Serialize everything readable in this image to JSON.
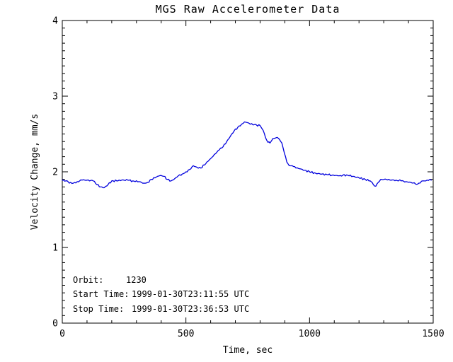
{
  "colors": {
    "background": "#ffffff",
    "axis": "#000000",
    "text": "#000000",
    "line": "#0000dd"
  },
  "chart_data": {
    "type": "line",
    "title": "MGS Raw Accelerometer Data",
    "xlabel": "Time, sec",
    "ylabel": "Velocity Change, mm/s",
    "xlim": [
      0,
      1500
    ],
    "ylim": [
      0,
      4
    ],
    "x_major_ticks": [
      0,
      500,
      1000,
      1500
    ],
    "x_tick_labels": [
      "0",
      "500",
      "1000",
      "1500"
    ],
    "y_major_ticks": [
      0,
      1,
      2,
      3,
      4
    ],
    "y_tick_labels": [
      "0",
      "1",
      "2",
      "3",
      "4"
    ],
    "x_minor_interval": 100,
    "y_minor_interval": 0.1,
    "grid": false,
    "axis_style": "boxed frame, inward ticks on all four sides",
    "legend": "none",
    "annotations": [
      {
        "label": "Orbit:",
        "value": "1230"
      },
      {
        "label": "Start Time:",
        "value": "1999-01-30T23:11:55 UTC"
      },
      {
        "label": "Stop Time:",
        "value": "1999-01-30T23:36:53 UTC"
      }
    ],
    "series": [
      {
        "name": "velocity change",
        "color": "#0000dd",
        "points": [
          [
            0,
            1.89
          ],
          [
            15,
            1.88
          ],
          [
            28,
            1.85
          ],
          [
            45,
            1.85
          ],
          [
            60,
            1.87
          ],
          [
            80,
            1.89
          ],
          [
            100,
            1.89
          ],
          [
            125,
            1.88
          ],
          [
            140,
            1.83
          ],
          [
            155,
            1.8
          ],
          [
            170,
            1.79
          ],
          [
            185,
            1.83
          ],
          [
            200,
            1.88
          ],
          [
            220,
            1.88
          ],
          [
            240,
            1.89
          ],
          [
            265,
            1.89
          ],
          [
            285,
            1.88
          ],
          [
            310,
            1.87
          ],
          [
            330,
            1.85
          ],
          [
            345,
            1.86
          ],
          [
            360,
            1.9
          ],
          [
            380,
            1.93
          ],
          [
            395,
            1.95
          ],
          [
            410,
            1.94
          ],
          [
            425,
            1.9
          ],
          [
            440,
            1.88
          ],
          [
            455,
            1.91
          ],
          [
            470,
            1.95
          ],
          [
            485,
            1.97
          ],
          [
            500,
            2.0
          ],
          [
            515,
            2.03
          ],
          [
            530,
            2.08
          ],
          [
            545,
            2.06
          ],
          [
            560,
            2.05
          ],
          [
            575,
            2.09
          ],
          [
            590,
            2.14
          ],
          [
            605,
            2.19
          ],
          [
            620,
            2.24
          ],
          [
            635,
            2.29
          ],
          [
            650,
            2.33
          ],
          [
            665,
            2.4
          ],
          [
            680,
            2.47
          ],
          [
            695,
            2.54
          ],
          [
            710,
            2.59
          ],
          [
            725,
            2.63
          ],
          [
            737,
            2.66
          ],
          [
            748,
            2.65
          ],
          [
            760,
            2.63
          ],
          [
            772,
            2.62
          ],
          [
            785,
            2.62
          ],
          [
            800,
            2.61
          ],
          [
            812,
            2.55
          ],
          [
            822,
            2.45
          ],
          [
            832,
            2.39
          ],
          [
            840,
            2.38
          ],
          [
            852,
            2.44
          ],
          [
            865,
            2.45
          ],
          [
            878,
            2.43
          ],
          [
            888,
            2.38
          ],
          [
            898,
            2.25
          ],
          [
            908,
            2.13
          ],
          [
            918,
            2.08
          ],
          [
            930,
            2.08
          ],
          [
            945,
            2.05
          ],
          [
            960,
            2.04
          ],
          [
            980,
            2.02
          ],
          [
            1000,
            2.0
          ],
          [
            1025,
            1.98
          ],
          [
            1050,
            1.97
          ],
          [
            1075,
            1.96
          ],
          [
            1100,
            1.95
          ],
          [
            1125,
            1.95
          ],
          [
            1150,
            1.96
          ],
          [
            1175,
            1.94
          ],
          [
            1200,
            1.92
          ],
          [
            1225,
            1.9
          ],
          [
            1245,
            1.88
          ],
          [
            1258,
            1.83
          ],
          [
            1268,
            1.81
          ],
          [
            1278,
            1.86
          ],
          [
            1292,
            1.9
          ],
          [
            1310,
            1.9
          ],
          [
            1330,
            1.89
          ],
          [
            1350,
            1.89
          ],
          [
            1370,
            1.88
          ],
          [
            1390,
            1.87
          ],
          [
            1410,
            1.86
          ],
          [
            1428,
            1.84
          ],
          [
            1442,
            1.85
          ],
          [
            1458,
            1.88
          ],
          [
            1475,
            1.89
          ],
          [
            1492,
            1.89
          ]
        ]
      }
    ]
  }
}
